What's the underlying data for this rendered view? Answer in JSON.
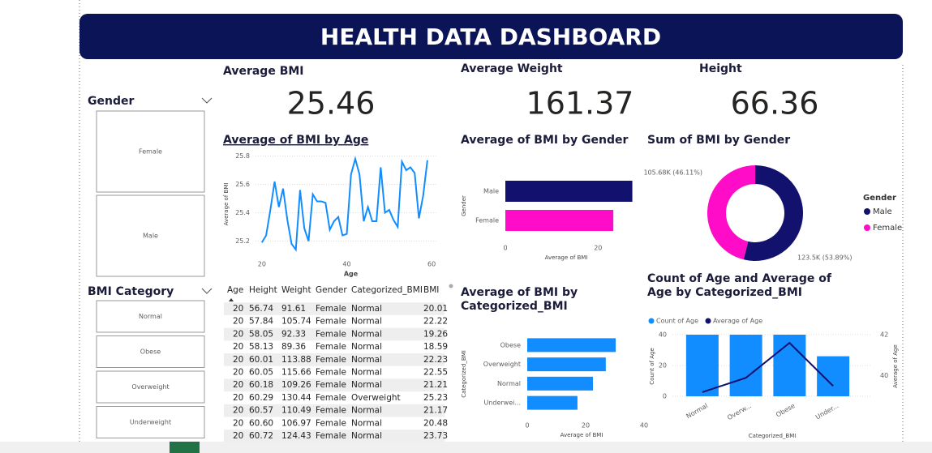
{
  "header": {
    "title": "HEALTH DATA DASHBOARD"
  },
  "cards": [
    {
      "title": "Average BMI",
      "value": 25.46
    },
    {
      "title": "Average Weight",
      "value": 161.37
    },
    {
      "title": "Height",
      "value": 66.36
    }
  ],
  "slicers": [
    {
      "title": "Gender",
      "items": [
        "Female",
        "Male"
      ]
    },
    {
      "title": "BMI Category",
      "items": [
        "Normal",
        "Obese",
        "Overweight",
        "Underweight"
      ]
    }
  ],
  "table": {
    "columns": [
      "Age",
      "Height",
      "Weight",
      "Gender",
      "Categorized_BMI",
      "BMI"
    ],
    "rows": [
      [
        "20",
        "56.74",
        "91.61",
        "Female",
        "Normal",
        "20.01"
      ],
      [
        "20",
        "57.84",
        "105.74",
        "Female",
        "Normal",
        "22.22"
      ],
      [
        "20",
        "58.05",
        "92.33",
        "Female",
        "Normal",
        "19.26"
      ],
      [
        "20",
        "58.13",
        "89.36",
        "Female",
        "Normal",
        "18.59"
      ],
      [
        "20",
        "60.01",
        "113.88",
        "Female",
        "Normal",
        "22.23"
      ],
      [
        "20",
        "60.05",
        "115.66",
        "Female",
        "Normal",
        "22.55"
      ],
      [
        "20",
        "60.18",
        "109.26",
        "Female",
        "Normal",
        "21.21"
      ],
      [
        "20",
        "60.29",
        "130.44",
        "Female",
        "Overweight",
        "25.23"
      ],
      [
        "20",
        "60.57",
        "110.49",
        "Female",
        "Normal",
        "21.17"
      ],
      [
        "20",
        "60.60",
        "106.97",
        "Female",
        "Normal",
        "20.48"
      ],
      [
        "20",
        "60.72",
        "124.43",
        "Female",
        "Normal",
        "23.73"
      ]
    ]
  },
  "chart_data": [
    {
      "type": "line",
      "title": "Average of BMI by Age",
      "x_label": "Age",
      "y_label": "Average of BMI",
      "color": "#118dff",
      "grid": true,
      "x": [
        20,
        21,
        22,
        23,
        24,
        25,
        26,
        27,
        28,
        29,
        30,
        31,
        32,
        33,
        34,
        35,
        36,
        37,
        38,
        39,
        40,
        41,
        42,
        43,
        44,
        45,
        46,
        47,
        48,
        49,
        50,
        51,
        52,
        53,
        54,
        55,
        56,
        57,
        58,
        59
      ],
      "values": [
        25.19,
        25.24,
        25.42,
        25.62,
        25.44,
        25.57,
        25.35,
        25.18,
        25.14,
        25.56,
        25.29,
        25.2,
        25.53,
        25.48,
        25.48,
        25.47,
        25.28,
        25.34,
        25.37,
        25.24,
        25.25,
        25.67,
        25.78,
        25.67,
        25.34,
        25.44,
        25.34,
        25.34,
        25.72,
        25.4,
        25.42,
        25.35,
        25.3,
        25.76,
        25.7,
        25.72,
        25.68,
        25.36,
        25.52,
        25.77
      ],
      "xlim": [
        18.5,
        61.5
      ],
      "xticks": [
        20,
        40,
        60
      ],
      "ylim": [
        25.1,
        25.82
      ],
      "yticks": [
        25.2,
        25.4,
        25.6,
        25.8
      ]
    },
    {
      "type": "bar",
      "title": "Average of BMI by Gender",
      "x_label": "Average of BMI",
      "y_label": "Gender",
      "categories": [
        "Male",
        "Female"
      ],
      "values": [
        27.4,
        23.3
      ],
      "colors": [
        "#12126e",
        "#ff0cc8"
      ],
      "xlim": [
        0,
        28
      ],
      "xticks": [
        0,
        20
      ]
    },
    {
      "type": "pie",
      "title": "Sum of BMI by Gender",
      "legend_title": "Gender",
      "legend": "right",
      "categories": [
        "Male",
        "Female"
      ],
      "values": [
        123500,
        105680
      ],
      "value_labels": [
        "123.5K (53.89%)",
        "105.68K (46.11%)"
      ],
      "colors": [
        "#12126e",
        "#ff0cc8"
      ]
    },
    {
      "type": "bar",
      "title": "Average of BMI by Categorized_BMI",
      "x_label": "Average of BMI",
      "y_label": "Categorized_BMI",
      "categories": [
        "Obese",
        "Overweight",
        "Normal",
        "Underwei..."
      ],
      "values": [
        30.3,
        26.9,
        22.5,
        17.2
      ],
      "color": "#118dff",
      "xlim": [
        0,
        40
      ],
      "xticks": [
        0,
        20,
        40
      ]
    },
    {
      "type": "combo",
      "title": "Count of Age and Average of Age by Categorized_BMI",
      "x_label": "Categorized_BMI",
      "y_label": "Count of Age",
      "y2_label": "Average of Age",
      "legend": "top",
      "grid": true,
      "categories": [
        "Normal",
        "Overw...",
        "Obese",
        "Under..."
      ],
      "series": [
        {
          "name": "Count of Age",
          "color": "#118dff",
          "values": [
            40,
            40,
            40,
            26
          ]
        },
        {
          "name": "Average of Age",
          "color": "#12126e",
          "axis": "y2",
          "values": [
            39.2,
            39.9,
            41.6,
            39.5
          ]
        }
      ],
      "ylim": [
        0,
        40
      ],
      "yticks": [
        0,
        20,
        40
      ],
      "y2lim": [
        39,
        42
      ],
      "y2ticks": [
        40,
        42
      ]
    }
  ]
}
